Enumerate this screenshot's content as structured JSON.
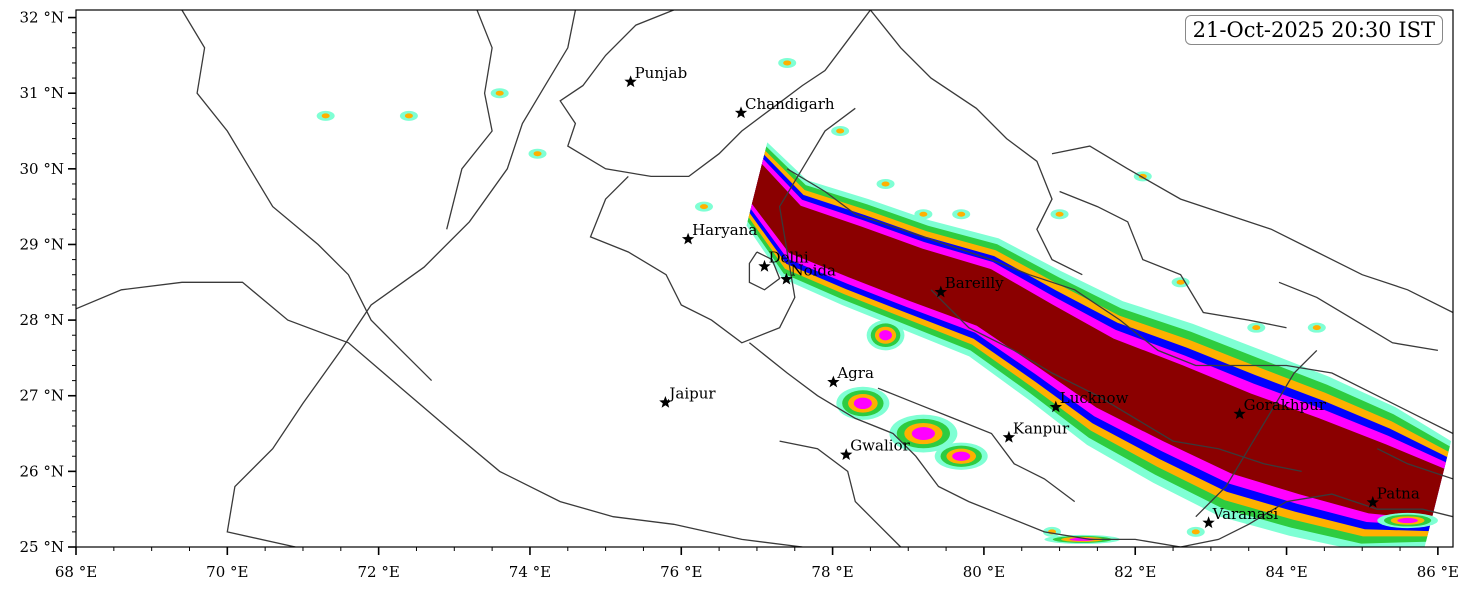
{
  "map": {
    "timestamp": "21-Oct-2025 20:30 IST",
    "projection": "lat-lon",
    "lon_range": [
      68,
      86.2
    ],
    "lat_range": [
      25,
      32.1
    ],
    "x_ticks": [
      {
        "value": 68,
        "label": "68 °E"
      },
      {
        "value": 70,
        "label": "70 °E"
      },
      {
        "value": 72,
        "label": "72 °E"
      },
      {
        "value": 74,
        "label": "74 °E"
      },
      {
        "value": 76,
        "label": "76 °E"
      },
      {
        "value": 78,
        "label": "78 °E"
      },
      {
        "value": 80,
        "label": "80 °E"
      },
      {
        "value": 82,
        "label": "82 °E"
      },
      {
        "value": 84,
        "label": "84 °E"
      },
      {
        "value": 86,
        "label": "86 °E"
      }
    ],
    "y_ticks": [
      {
        "value": 25,
        "label": "25 °N"
      },
      {
        "value": 26,
        "label": "26 °N"
      },
      {
        "value": 27,
        "label": "27 °N"
      },
      {
        "value": 28,
        "label": "28 °N"
      },
      {
        "value": 29,
        "label": "29 °N"
      },
      {
        "value": 30,
        "label": "30 °N"
      },
      {
        "value": 31,
        "label": "31 °N"
      },
      {
        "value": 32,
        "label": "32 °N"
      }
    ],
    "cities": [
      {
        "name": "Punjab",
        "lon": 75.33,
        "lat": 31.15
      },
      {
        "name": "Chandigarh",
        "lon": 76.79,
        "lat": 30.74
      },
      {
        "name": "Haryana",
        "lon": 76.09,
        "lat": 29.07
      },
      {
        "name": "Delhi",
        "lon": 77.1,
        "lat": 28.71
      },
      {
        "name": "Noida",
        "lon": 77.39,
        "lat": 28.54
      },
      {
        "name": "Bareilly",
        "lon": 79.43,
        "lat": 28.37
      },
      {
        "name": "Agra",
        "lon": 78.01,
        "lat": 27.18
      },
      {
        "name": "Jaipur",
        "lon": 75.79,
        "lat": 26.91
      },
      {
        "name": "Gwalior",
        "lon": 78.18,
        "lat": 26.22
      },
      {
        "name": "Lucknow",
        "lon": 80.95,
        "lat": 26.85
      },
      {
        "name": "Kanpur",
        "lon": 80.33,
        "lat": 26.45
      },
      {
        "name": "Gorakhpur",
        "lon": 83.38,
        "lat": 26.76
      },
      {
        "name": "Varanasi",
        "lon": 82.97,
        "lat": 25.32
      },
      {
        "name": "Patna",
        "lon": 85.14,
        "lat": 25.59
      }
    ],
    "palette": {
      "level1": "#7fffd4",
      "level2": "#2ecc40",
      "level3": "#ffb000",
      "level4": "#0000ff",
      "level5": "#ff00ff",
      "level6": "#8b0000",
      "boundary": "#3a3a3a"
    }
  }
}
